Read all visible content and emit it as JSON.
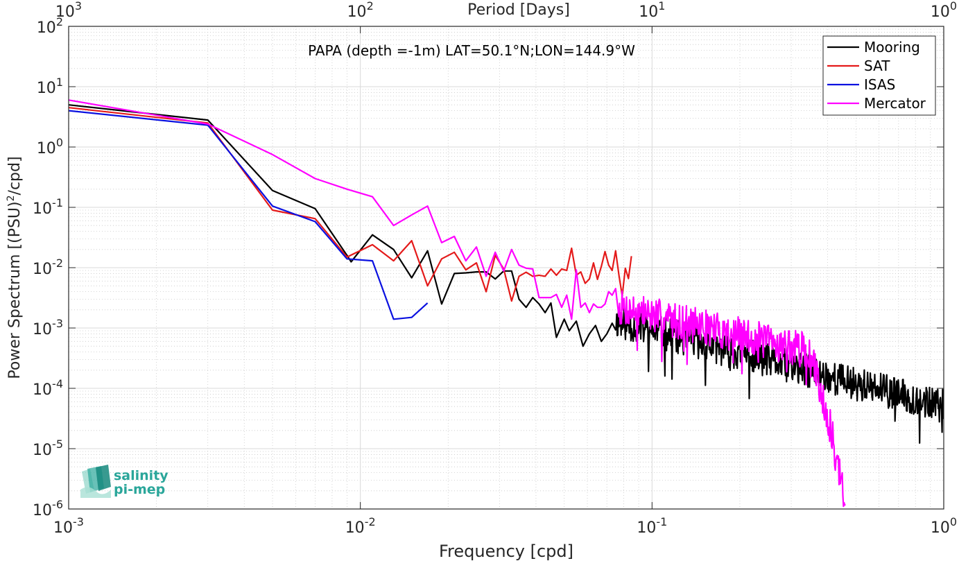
{
  "chart_data": {
    "type": "line",
    "title": "PAPA (depth =-1m) LAT=50.1°N;LON=144.9°W",
    "xlabel": "Frequency [cpd]",
    "ylabel": "Power Spectrum [(PSU)^2/cpd]",
    "top_xlabel": "Period [Days]",
    "x_scale": "log",
    "y_scale": "log",
    "xlim": [
      0.001,
      1
    ],
    "ylim": [
      1e-06,
      100
    ],
    "x_ticks": [
      0.001,
      0.01,
      0.1,
      1
    ],
    "x_tick_labels": [
      {
        "base": "10",
        "exp": "-3"
      },
      {
        "base": "10",
        "exp": "-2"
      },
      {
        "base": "10",
        "exp": "-1"
      },
      {
        "base": "10",
        "exp": "0"
      }
    ],
    "top_tick_labels": [
      {
        "base": "10",
        "exp": "3"
      },
      {
        "base": "10",
        "exp": "2"
      },
      {
        "base": "10",
        "exp": "1"
      },
      {
        "base": "10",
        "exp": "0"
      }
    ],
    "y_ticks": [
      1e-06,
      1e-05,
      0.0001,
      0.001,
      0.01,
      0.1,
      1,
      10,
      100
    ],
    "y_tick_labels": [
      {
        "base": "10",
        "exp": "-6"
      },
      {
        "base": "10",
        "exp": "-5"
      },
      {
        "base": "10",
        "exp": "-4"
      },
      {
        "base": "10",
        "exp": "-3"
      },
      {
        "base": "10",
        "exp": "-2"
      },
      {
        "base": "10",
        "exp": "-1"
      },
      {
        "base": "10",
        "exp": "0"
      },
      {
        "base": "10",
        "exp": "1"
      },
      {
        "base": "10",
        "exp": "2"
      }
    ],
    "grid": true,
    "minor_grid": true,
    "legend_position": "top-right",
    "series": [
      {
        "name": "Mooring",
        "color": "#000000",
        "points": [
          [
            0.001,
            5.0
          ],
          [
            0.003,
            2.8
          ],
          [
            0.005,
            0.19
          ],
          [
            0.007,
            0.095
          ],
          [
            0.009,
            0.016
          ],
          [
            0.0093,
            0.0125
          ],
          [
            0.011,
            0.035
          ],
          [
            0.013,
            0.02
          ],
          [
            0.015,
            0.0068
          ],
          [
            0.017,
            0.019
          ],
          [
            0.019,
            0.0025
          ],
          [
            0.021,
            0.008
          ],
          [
            0.023,
            0.0082
          ],
          [
            0.025,
            0.0085
          ],
          [
            0.027,
            0.0085
          ],
          [
            0.029,
            0.0065
          ],
          [
            0.031,
            0.0088
          ],
          [
            0.033,
            0.0088
          ],
          [
            0.035,
            0.003
          ],
          [
            0.037,
            0.0022
          ],
          [
            0.039,
            0.0032
          ],
          [
            0.041,
            0.0025
          ],
          [
            0.043,
            0.0018
          ],
          [
            0.045,
            0.0026
          ],
          [
            0.047,
            0.0007
          ],
          [
            0.05,
            0.0014
          ],
          [
            0.052,
            0.0009
          ],
          [
            0.055,
            0.0013
          ],
          [
            0.058,
            0.0005
          ],
          [
            0.061,
            0.0008
          ],
          [
            0.064,
            0.0011
          ],
          [
            0.067,
            0.0006
          ],
          [
            0.07,
            0.0008
          ],
          [
            0.073,
            0.0012
          ]
        ],
        "noise": {
          "start": 0.075,
          "end": 1.0,
          "points": 600,
          "y_start": 0.0013,
          "y_end": 5e-05,
          "jitter": 0.28,
          "seed": 11
        }
      },
      {
        "name": "SAT",
        "color": "#e41a1a",
        "points": [
          [
            0.001,
            4.5
          ],
          [
            0.003,
            2.5
          ],
          [
            0.005,
            0.09
          ],
          [
            0.007,
            0.065
          ],
          [
            0.009,
            0.015
          ],
          [
            0.011,
            0.024
          ],
          [
            0.013,
            0.013
          ],
          [
            0.015,
            0.028
          ],
          [
            0.017,
            0.005
          ],
          [
            0.019,
            0.014
          ],
          [
            0.021,
            0.018
          ],
          [
            0.023,
            0.0092
          ],
          [
            0.025,
            0.012
          ],
          [
            0.027,
            0.004
          ],
          [
            0.029,
            0.016
          ],
          [
            0.031,
            0.0095
          ],
          [
            0.033,
            0.0028
          ],
          [
            0.035,
            0.0072
          ],
          [
            0.037,
            0.0084
          ],
          [
            0.039,
            0.0072
          ],
          [
            0.041,
            0.0075
          ],
          [
            0.043,
            0.0072
          ],
          [
            0.045,
            0.0095
          ],
          [
            0.047,
            0.0075
          ],
          [
            0.049,
            0.0095
          ],
          [
            0.051,
            0.009
          ],
          [
            0.053,
            0.021
          ],
          [
            0.055,
            0.0075
          ],
          [
            0.057,
            0.0085
          ],
          [
            0.059,
            0.0055
          ],
          [
            0.061,
            0.0065
          ],
          [
            0.063,
            0.012
          ],
          [
            0.065,
            0.0064
          ],
          [
            0.067,
            0.0105
          ],
          [
            0.069,
            0.0185
          ],
          [
            0.071,
            0.011
          ],
          [
            0.073,
            0.009
          ],
          [
            0.075,
            0.019
          ],
          [
            0.077,
            0.0075
          ],
          [
            0.079,
            0.0034
          ],
          [
            0.081,
            0.0098
          ],
          [
            0.083,
            0.0066
          ],
          [
            0.085,
            0.0155
          ]
        ]
      },
      {
        "name": "ISAS",
        "color": "#0a10e0",
        "points": [
          [
            0.001,
            4.0
          ],
          [
            0.003,
            2.3
          ],
          [
            0.005,
            0.105
          ],
          [
            0.007,
            0.058
          ],
          [
            0.009,
            0.014
          ],
          [
            0.011,
            0.013
          ],
          [
            0.013,
            0.0014
          ],
          [
            0.015,
            0.0015
          ],
          [
            0.017,
            0.0026
          ]
        ]
      },
      {
        "name": "Mercator",
        "color": "#ff00ff",
        "points": [
          [
            0.001,
            6.0
          ],
          [
            0.003,
            2.4
          ],
          [
            0.005,
            0.75
          ],
          [
            0.007,
            0.3
          ],
          [
            0.009,
            0.2
          ],
          [
            0.011,
            0.15
          ],
          [
            0.013,
            0.05
          ],
          [
            0.015,
            0.075
          ],
          [
            0.017,
            0.105
          ],
          [
            0.019,
            0.026
          ],
          [
            0.021,
            0.033
          ],
          [
            0.023,
            0.013
          ],
          [
            0.025,
            0.022
          ],
          [
            0.027,
            0.0072
          ],
          [
            0.029,
            0.018
          ],
          [
            0.031,
            0.0088
          ],
          [
            0.033,
            0.02
          ],
          [
            0.035,
            0.011
          ],
          [
            0.037,
            0.0098
          ],
          [
            0.039,
            0.0095
          ],
          [
            0.041,
            0.0032
          ],
          [
            0.043,
            0.0032
          ],
          [
            0.045,
            0.0032
          ],
          [
            0.047,
            0.0036
          ],
          [
            0.049,
            0.0022
          ],
          [
            0.051,
            0.0035
          ],
          [
            0.053,
            0.0014
          ],
          [
            0.055,
            0.0092
          ],
          [
            0.057,
            0.0022
          ],
          [
            0.059,
            0.0026
          ],
          [
            0.061,
            0.0018
          ],
          [
            0.063,
            0.0025
          ],
          [
            0.065,
            0.0022
          ],
          [
            0.067,
            0.0022
          ],
          [
            0.069,
            0.0025
          ],
          [
            0.071,
            0.004
          ],
          [
            0.073,
            0.0035
          ],
          [
            0.075,
            0.0045
          ]
        ],
        "noise": {
          "start": 0.077,
          "end": 0.46,
          "points": 360,
          "y_start": 0.0022,
          "y_end": 0.0003,
          "jitter": 0.3,
          "seed": 7,
          "falloff_start": 0.33,
          "falloff_end_value": 1e-06
        }
      }
    ]
  },
  "logo": {
    "line1": "salinity",
    "line2": "pi-mep"
  }
}
